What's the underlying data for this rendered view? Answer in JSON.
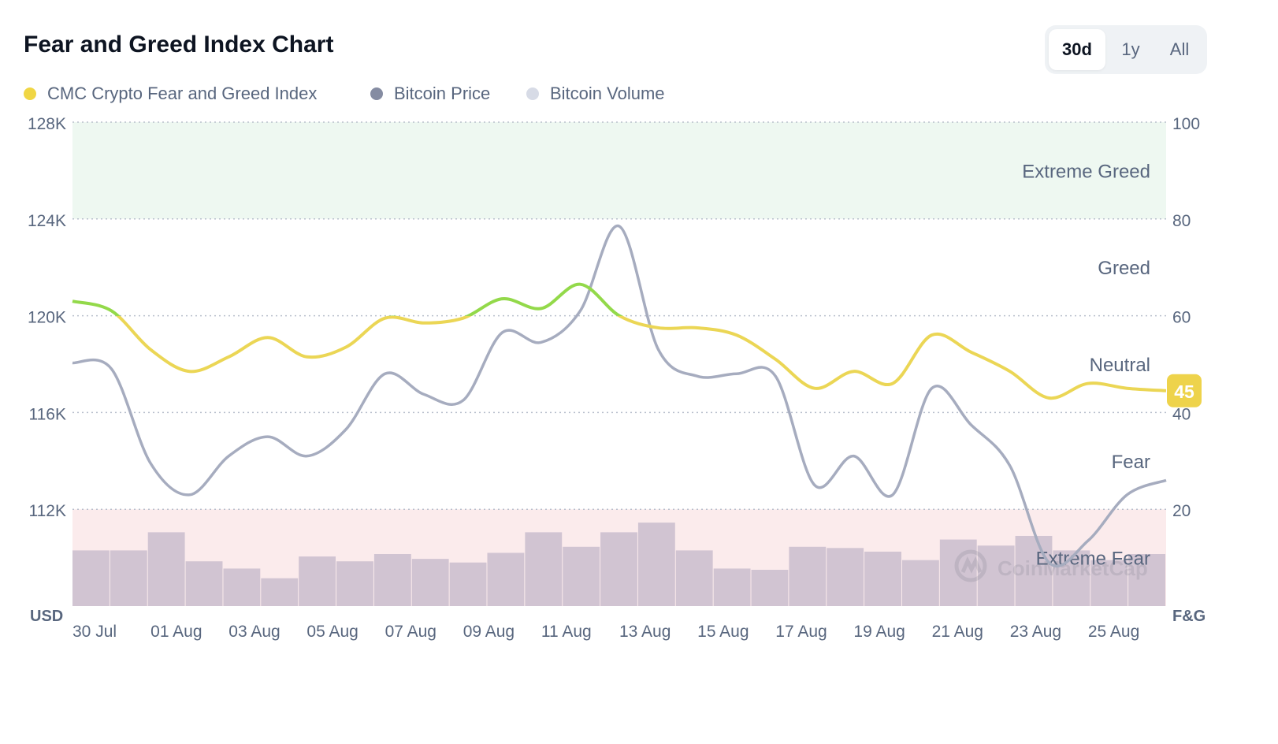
{
  "header": {
    "title": "Fear and Greed Index Chart",
    "ranges": [
      "30d",
      "1y",
      "All"
    ],
    "active_range": "30d"
  },
  "legend": [
    {
      "label": "CMC Crypto Fear and Greed Index",
      "color": "#f0d644"
    },
    {
      "label": "Bitcoin Price",
      "color": "#858ca2"
    },
    {
      "label": "Bitcoin Volume",
      "color": "#d7dbe6"
    }
  ],
  "colors": {
    "fg_line": "#ebd655",
    "fg_line_greed": "#93d94a",
    "price_line": "#a6acbf",
    "volume_bar": "#d1c4d2",
    "extreme_greed_band": "#eef8f1",
    "extreme_fear_band": "#fbebec",
    "grid": "#b8bfcc",
    "badge": "#eed34b"
  },
  "chart_data": {
    "type": "line",
    "x_ticks": [
      "30 Jul",
      "01 Aug",
      "03 Aug",
      "05 Aug",
      "07 Aug",
      "09 Aug",
      "11 Aug",
      "13 Aug",
      "15 Aug",
      "17 Aug",
      "19 Aug",
      "21 Aug",
      "23 Aug",
      "25 Aug"
    ],
    "y_left": {
      "label": "USD",
      "ticks": [
        "128K",
        "124K",
        "120K",
        "116K",
        "112K"
      ],
      "range": [
        108000,
        128000
      ]
    },
    "y_right": {
      "label": "F&G",
      "ticks": [
        "100",
        "80",
        "60",
        "40",
        "20"
      ],
      "range": [
        0,
        100
      ]
    },
    "zones": [
      "Extreme Greed",
      "Greed",
      "Neutral",
      "Fear",
      "Extreme Fear"
    ],
    "grid": true,
    "current_value": "45",
    "watermark": "CoinMarketCap",
    "series": [
      {
        "name": "CMC Crypto Fear and Greed Index",
        "axis": "right",
        "x": [
          "30 Jul",
          "31 Jul",
          "01 Aug",
          "02 Aug",
          "03 Aug",
          "04 Aug",
          "05 Aug",
          "06 Aug",
          "07 Aug",
          "08 Aug",
          "09 Aug",
          "10 Aug",
          "11 Aug",
          "12 Aug",
          "13 Aug",
          "14 Aug",
          "15 Aug",
          "16 Aug",
          "17 Aug",
          "18 Aug",
          "19 Aug",
          "20 Aug",
          "21 Aug",
          "22 Aug",
          "23 Aug",
          "24 Aug",
          "25 Aug",
          "26 Aug",
          "27 Aug"
        ],
        "values": [
          63,
          61,
          53,
          48.5,
          51.5,
          55.5,
          51.5,
          53.5,
          59.5,
          58.5,
          59.5,
          63.5,
          61.5,
          66.5,
          60,
          57.5,
          57.5,
          56,
          51,
          45,
          48.5,
          46,
          56,
          52.5,
          48.5,
          43,
          46,
          45,
          44.5
        ]
      },
      {
        "name": "Bitcoin Price",
        "axis": "left",
        "x": [
          "30 Jul",
          "31 Jul",
          "01 Aug",
          "02 Aug",
          "03 Aug",
          "04 Aug",
          "05 Aug",
          "06 Aug",
          "07 Aug",
          "08 Aug",
          "09 Aug",
          "10 Aug",
          "11 Aug",
          "12 Aug",
          "13 Aug",
          "14 Aug",
          "15 Aug",
          "16 Aug",
          "17 Aug",
          "18 Aug",
          "19 Aug",
          "20 Aug",
          "21 Aug",
          "22 Aug",
          "23 Aug",
          "24 Aug",
          "25 Aug",
          "26 Aug",
          "27 Aug"
        ],
        "values": [
          118050,
          117800,
          113900,
          112600,
          114200,
          115000,
          114200,
          115300,
          117600,
          116750,
          116500,
          119300,
          118900,
          120200,
          123700,
          118600,
          117500,
          117600,
          117500,
          113000,
          114200,
          112600,
          117000,
          115500,
          113800,
          109800,
          110700,
          112600,
          113200
        ]
      },
      {
        "name": "Bitcoin Volume",
        "axis": "left",
        "type": "bar",
        "x": [
          "30 Jul",
          "31 Jul",
          "01 Aug",
          "02 Aug",
          "03 Aug",
          "04 Aug",
          "05 Aug",
          "06 Aug",
          "07 Aug",
          "08 Aug",
          "09 Aug",
          "10 Aug",
          "11 Aug",
          "12 Aug",
          "13 Aug",
          "14 Aug",
          "15 Aug",
          "16 Aug",
          "17 Aug",
          "18 Aug",
          "19 Aug",
          "20 Aug",
          "21 Aug",
          "22 Aug",
          "23 Aug",
          "24 Aug",
          "25 Aug",
          "26 Aug",
          "27 Aug"
        ],
        "values": [
          110300,
          110300,
          111050,
          109850,
          109550,
          109150,
          110050,
          109850,
          110150,
          109950,
          109800,
          110200,
          111050,
          110450,
          111050,
          111450,
          110300,
          109550,
          109500,
          110450,
          110400,
          110250,
          109900,
          110750,
          110500,
          110900,
          110300,
          109900,
          110150
        ]
      }
    ]
  }
}
